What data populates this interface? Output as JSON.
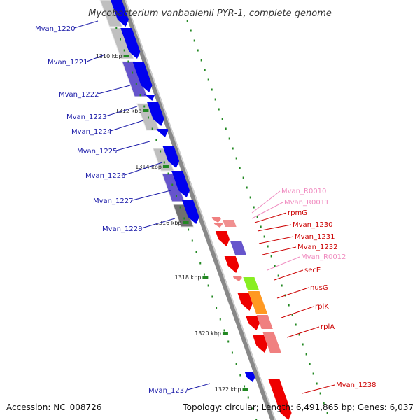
{
  "title": "Mycobacterium vanbaalenii PYR-1, complete genome",
  "accession": "Accession: NC_008726",
  "summary": "Topology: circular; Length: 6,491,865 bp; Genes: 6,037",
  "colors": {
    "blue_label": "#1a1aa8",
    "red_label": "#cc0000",
    "pink_label": "#f08cc0",
    "gene_blue": "#0000ee",
    "gene_red": "#ee0000",
    "gene_pink": "#f08080",
    "gene_green": "#88ee22",
    "gene_orange": "#ff9922",
    "cds_gray": "#bfbfbf",
    "cds_darkgray": "#707070",
    "cds_violet": "#6655cc",
    "backbone": "#888888",
    "tick_green": "#228822"
  },
  "ticks": [
    "1310 kbp",
    "1312 kbp",
    "1314 kbp",
    "1316 kbp",
    "1318 kbp",
    "1320 kbp",
    "1322 kbp"
  ],
  "left_genes": [
    "Mvan_1220",
    "Mvan_1221",
    "Mvan_1222",
    "Mvan_1223",
    "Mvan_1224",
    "Mvan_1225",
    "Mvan_1226",
    "Mvan_1227",
    "Mvan_1228",
    "Mvan_1237"
  ],
  "right_genes": [
    "Mvan_R0010",
    "Mvan_R0011",
    "rpmG",
    "Mvan_1230",
    "Mvan_1231",
    "Mvan_1232",
    "Mvan_R0012",
    "secE",
    "nusG",
    "rplK",
    "rplA",
    "Mvan_1238"
  ]
}
